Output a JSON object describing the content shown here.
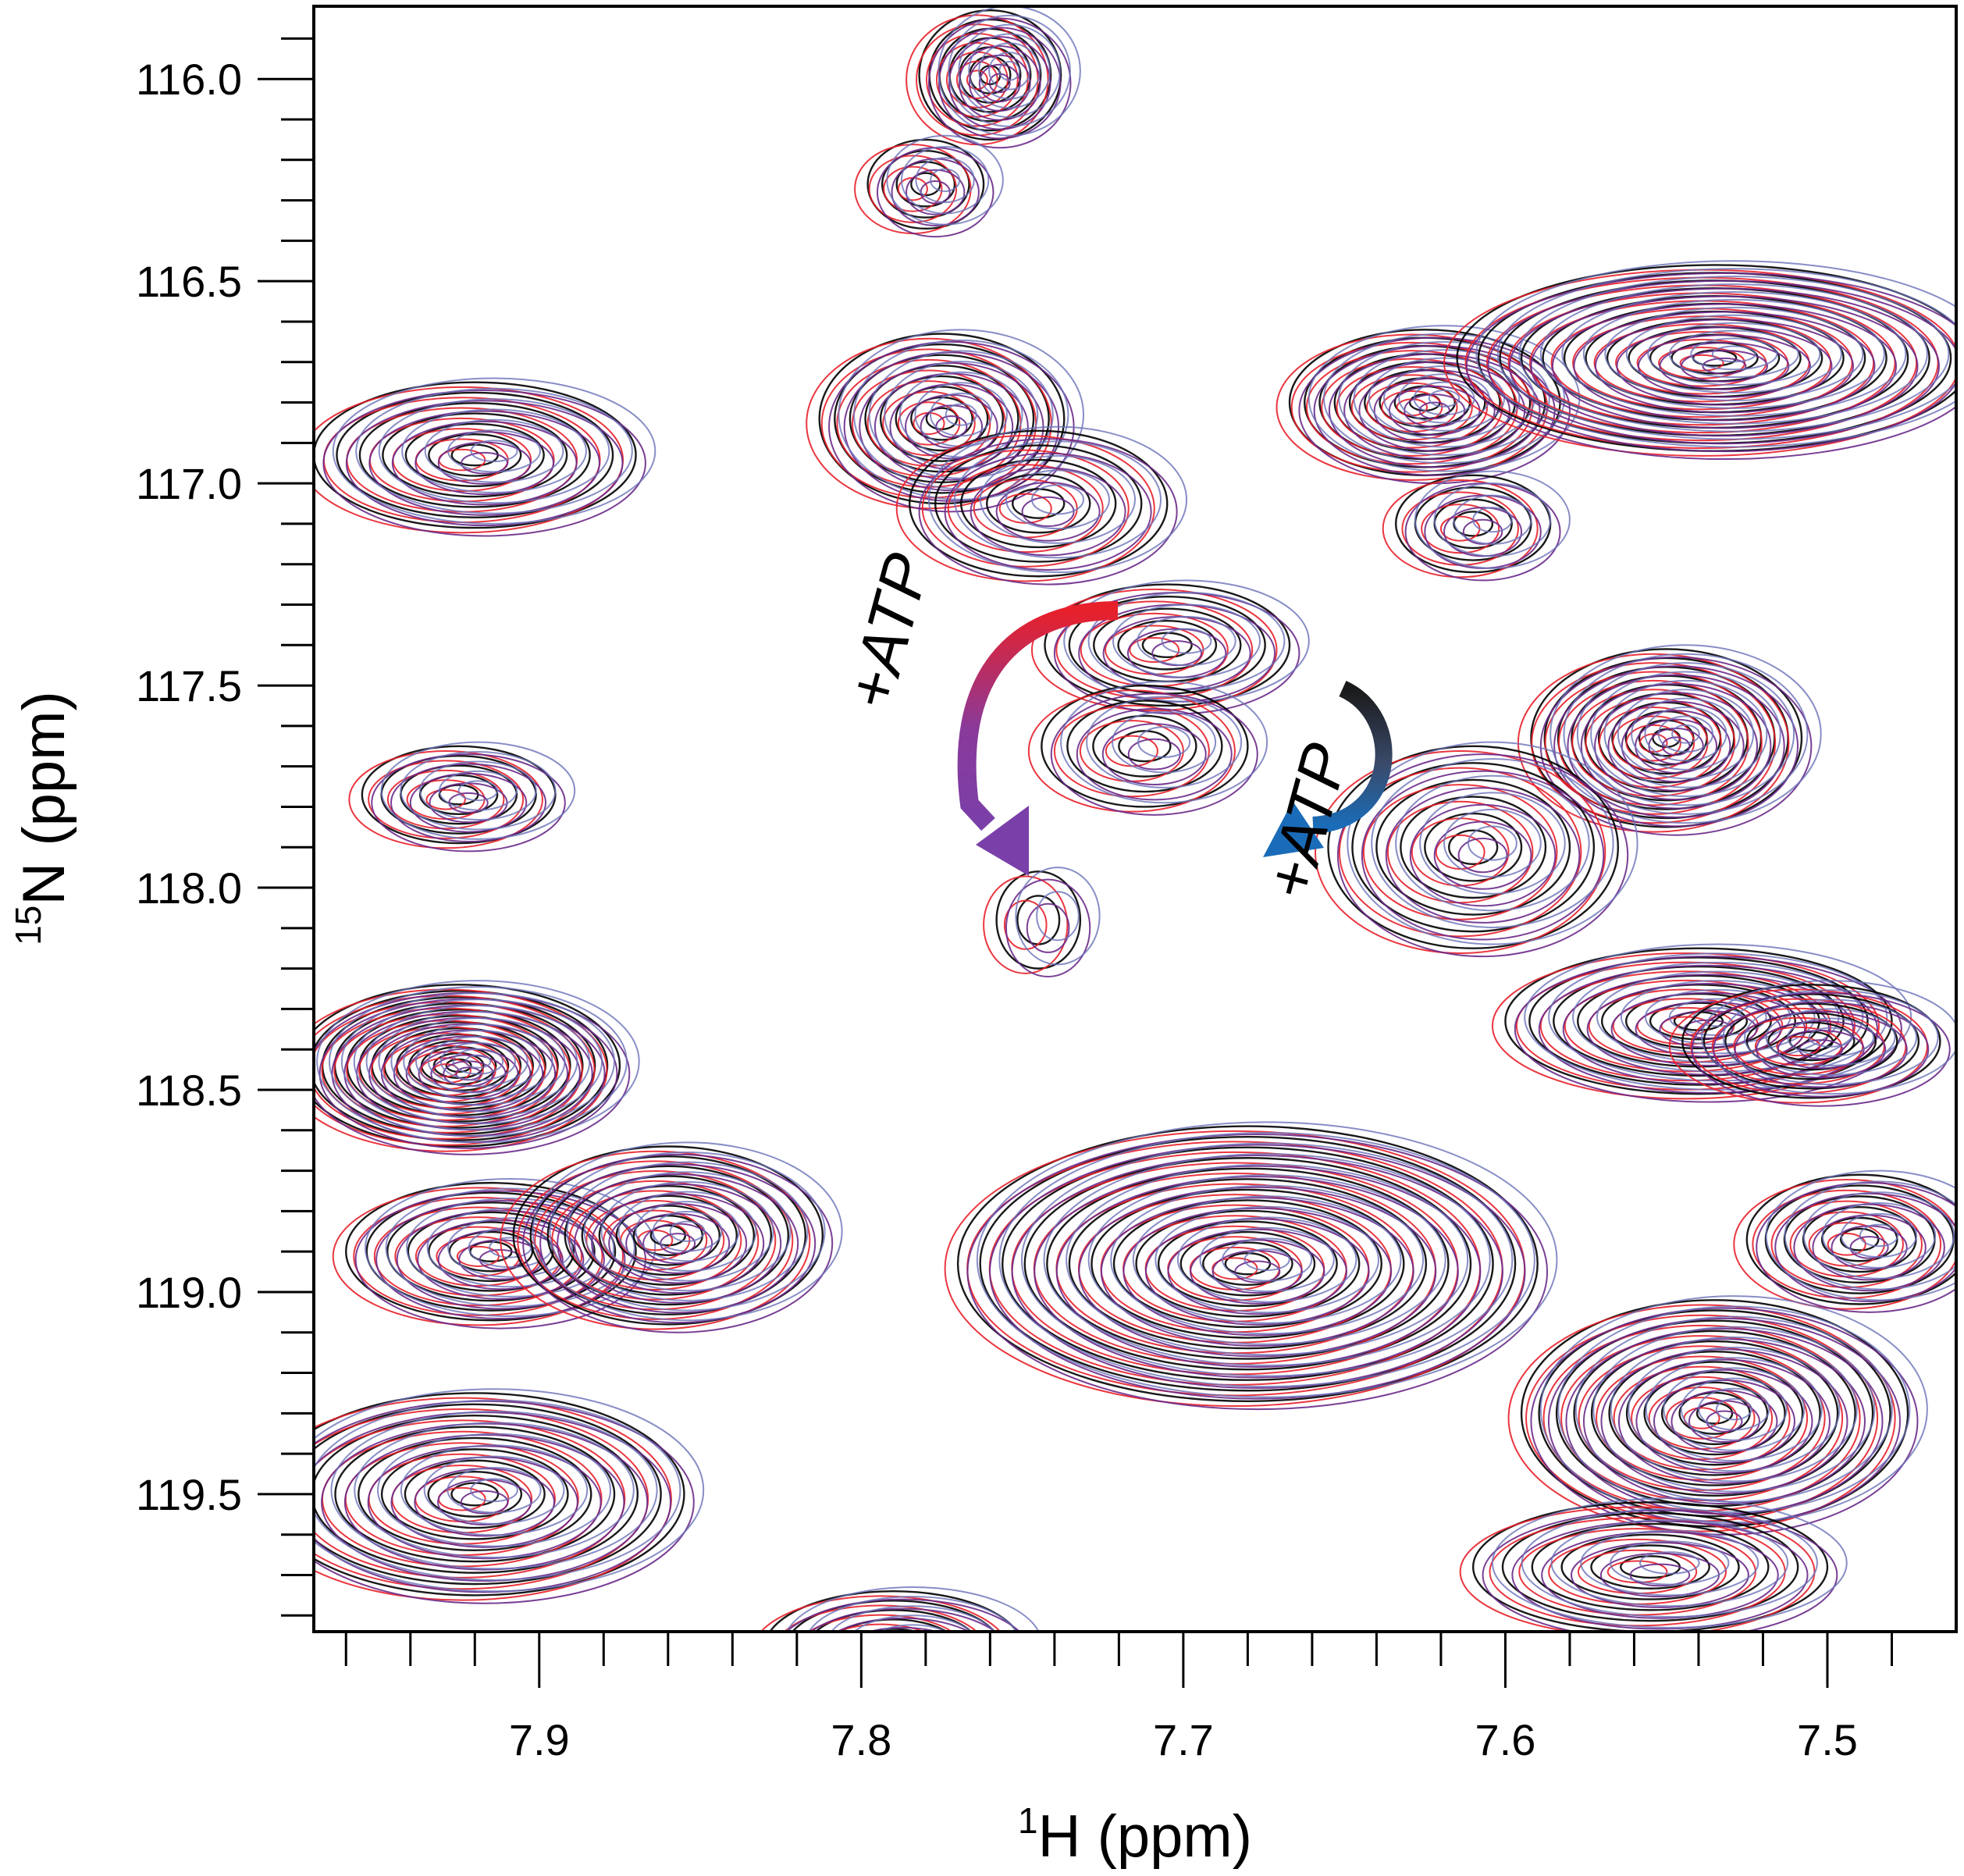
{
  "chart_data": {
    "type": "contour",
    "title": "",
    "xlabel": {
      "sup": "1",
      "main": "H (ppm)"
    },
    "ylabel": {
      "sup": "15",
      "main": "N (ppm)"
    },
    "xlim": [
      7.97,
      7.46
    ],
    "ylim": [
      115.82,
      119.84
    ],
    "x_ticks": [
      {
        "value": 7.9,
        "label": "7.9"
      },
      {
        "value": 7.8,
        "label": "7.8"
      },
      {
        "value": 7.7,
        "label": "7.7"
      },
      {
        "value": 7.6,
        "label": "7.6"
      },
      {
        "value": 7.5,
        "label": "7.5"
      }
    ],
    "y_ticks": [
      {
        "value": 116.0,
        "label": "116.0"
      },
      {
        "value": 116.5,
        "label": "116.5"
      },
      {
        "value": 117.0,
        "label": "117.0"
      },
      {
        "value": 117.5,
        "label": "117.5"
      },
      {
        "value": 118.0,
        "label": "118.0"
      },
      {
        "value": 118.5,
        "label": "118.5"
      },
      {
        "value": 119.0,
        "label": "119.0"
      },
      {
        "value": 119.5,
        "label": "119.5"
      }
    ],
    "x_minor_step": 0.02,
    "y_minor_step": 0.1,
    "series_colors": [
      "#000000",
      "#e8202a",
      "#6a2a8a",
      "#6a72b8"
    ],
    "peaks": [
      {
        "x": 7.76,
        "y": 115.99,
        "rx": 0.022,
        "ry": 0.16,
        "levels": 7
      },
      {
        "x": 7.78,
        "y": 116.26,
        "rx": 0.018,
        "ry": 0.11,
        "levels": 4
      },
      {
        "x": 7.92,
        "y": 116.93,
        "rx": 0.05,
        "ry": 0.18,
        "levels": 7
      },
      {
        "x": 7.925,
        "y": 117.77,
        "rx": 0.03,
        "ry": 0.12,
        "levels": 5
      },
      {
        "x": 7.775,
        "y": 116.84,
        "rx": 0.038,
        "ry": 0.21,
        "levels": 8
      },
      {
        "x": 7.745,
        "y": 117.05,
        "rx": 0.04,
        "ry": 0.18,
        "levels": 5
      },
      {
        "x": 7.705,
        "y": 117.4,
        "rx": 0.038,
        "ry": 0.15,
        "levels": 5
      },
      {
        "x": 7.712,
        "y": 117.65,
        "rx": 0.032,
        "ry": 0.15,
        "levels": 4
      },
      {
        "x": 7.745,
        "y": 118.08,
        "rx": 0.013,
        "ry": 0.12,
        "levels": 2
      },
      {
        "x": 7.625,
        "y": 116.8,
        "rx": 0.042,
        "ry": 0.18,
        "levels": 9
      },
      {
        "x": 7.61,
        "y": 117.1,
        "rx": 0.024,
        "ry": 0.12,
        "levels": 4
      },
      {
        "x": 7.535,
        "y": 116.69,
        "rx": 0.08,
        "ry": 0.23,
        "levels": 12
      },
      {
        "x": 7.55,
        "y": 117.63,
        "rx": 0.042,
        "ry": 0.22,
        "levels": 10
      },
      {
        "x": 7.61,
        "y": 117.9,
        "rx": 0.045,
        "ry": 0.25,
        "levels": 6
      },
      {
        "x": 7.925,
        "y": 118.44,
        "rx": 0.05,
        "ry": 0.2,
        "levels": 13
      },
      {
        "x": 7.915,
        "y": 118.9,
        "rx": 0.045,
        "ry": 0.17,
        "levels": 7
      },
      {
        "x": 7.86,
        "y": 118.86,
        "rx": 0.048,
        "ry": 0.22,
        "levels": 9
      },
      {
        "x": 7.68,
        "y": 118.93,
        "rx": 0.09,
        "ry": 0.34,
        "levels": 13
      },
      {
        "x": 7.54,
        "y": 118.33,
        "rx": 0.06,
        "ry": 0.18,
        "levels": 8
      },
      {
        "x": 7.505,
        "y": 118.38,
        "rx": 0.04,
        "ry": 0.14,
        "levels": 6
      },
      {
        "x": 7.49,
        "y": 118.87,
        "rx": 0.035,
        "ry": 0.16,
        "levels": 6
      },
      {
        "x": 7.535,
        "y": 119.3,
        "rx": 0.06,
        "ry": 0.28,
        "levels": 11
      },
      {
        "x": 7.555,
        "y": 119.68,
        "rx": 0.055,
        "ry": 0.16,
        "levels": 6
      },
      {
        "x": 7.92,
        "y": 119.5,
        "rx": 0.065,
        "ry": 0.25,
        "levels": 9
      },
      {
        "x": 7.79,
        "y": 119.88,
        "rx": 0.04,
        "ry": 0.14,
        "levels": 6
      }
    ],
    "annotations": [
      {
        "text": "+ATP",
        "x": 7.785,
        "y": 117.38,
        "rotate": -75
      },
      {
        "text": "+ATP",
        "x": 7.655,
        "y": 117.85,
        "rotate": -75
      }
    ],
    "arrow_colors": {
      "left": [
        "#e8202a",
        "#8a3a9a",
        "#7a3fa8"
      ],
      "right": [
        "#1a1a1a",
        "#3a4a6a",
        "#1a6cb8"
      ]
    }
  }
}
